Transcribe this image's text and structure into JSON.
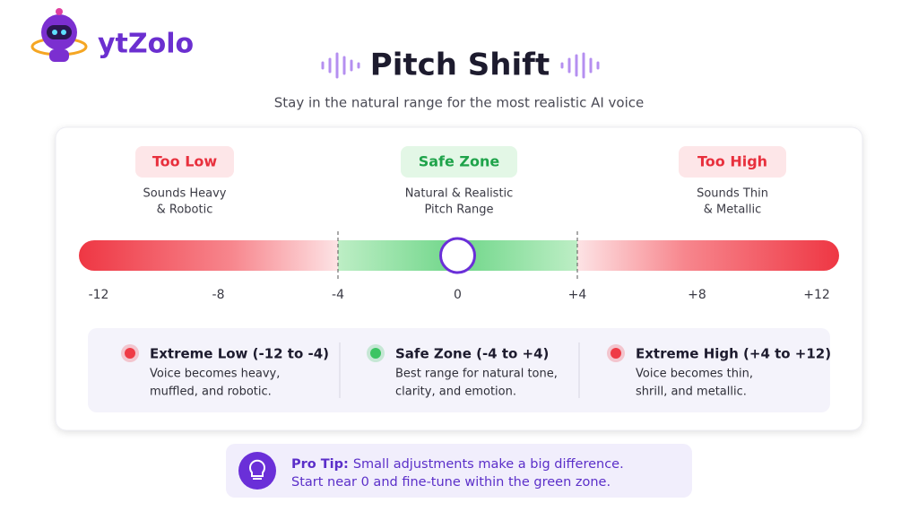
{
  "logo": {
    "text": "ytZolo"
  },
  "header": {
    "title": "Pitch Shift",
    "subtitle": "Stay in the natural range for the most realistic AI voice"
  },
  "zones": [
    {
      "label": "Too Low",
      "description": [
        "Sounds Heavy",
        "& Robotic"
      ]
    },
    {
      "label": "Safe Zone",
      "description": [
        "Natural & Realistic",
        "Pitch Range"
      ]
    },
    {
      "label": "Too High",
      "description": [
        "Sounds Thin",
        "& Metallic"
      ]
    }
  ],
  "scale": {
    "min": -12,
    "max": 12,
    "ticks": [
      -12,
      -8,
      -4,
      0,
      {
        "value": 4,
        "label": "+4"
      },
      {
        "value": 8,
        "label": "+8"
      },
      {
        "value": 12,
        "label": "+12"
      }
    ],
    "safe_zone": [
      -4,
      4
    ],
    "knob": 0
  },
  "legend": [
    {
      "title": "Extreme Low (-12 to -4)",
      "description": [
        "Voice becomes heavy,",
        "muffled, and robotic."
      ]
    },
    {
      "title": "Safe Zone (-4 to +4)",
      "description": [
        "Best range for natural tone,",
        "clarity, and emotion."
      ]
    },
    {
      "title": "Extreme High (+4 to +12)",
      "description": [
        "Voice becomes thin,",
        "shrill, and metallic."
      ]
    }
  ],
  "tip": {
    "label": "Pro Tip:",
    "text": [
      "Small adjustments make a big difference.",
      "Start near 0 and fine-tune within the green zone."
    ]
  }
}
